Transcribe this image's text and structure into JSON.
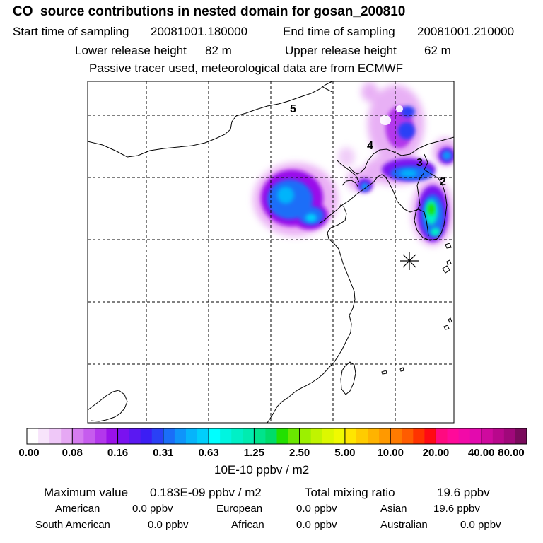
{
  "header": {
    "title": "CO  source contributions in nested domain for gosan_200810",
    "start_label": "Start time of sampling",
    "start_value": "20081001.180000",
    "end_label": "End time of sampling",
    "end_value": "20081001.210000",
    "lower_label": "Lower release height",
    "lower_value": "82 m",
    "upper_label": "Upper release height",
    "upper_value": "62 m",
    "note": "Passive tracer used, meteorological data are from ECMWF"
  },
  "map": {
    "trajectory_labels": [
      "5",
      "4",
      "3",
      "2"
    ],
    "receptor_marker": "asterisk"
  },
  "colorbar": {
    "ticks": [
      "0.00",
      "0.08",
      "0.16",
      "0.31",
      "0.63",
      "1.25",
      "2.50",
      "5.00",
      "10.00",
      "20.00",
      "40.00",
      "80.00"
    ],
    "colors": [
      "#ffffff",
      "#f7e4fb",
      "#efc8f8",
      "#e6a8f4",
      "#d57cf0",
      "#c65cee",
      "#b337ec",
      "#9a11ea",
      "#7a12f0",
      "#5b18f2",
      "#3c1ef4",
      "#2a40f6",
      "#1a6ef8",
      "#0f94fa",
      "#06b4fb",
      "#00cffc",
      "#00ffff",
      "#00f5e0",
      "#00f0c6",
      "#00ecb0",
      "#00e48c",
      "#00dc6a",
      "#22e000",
      "#6ae800",
      "#9cf000",
      "#c0f400",
      "#dcf800",
      "#f0fa00",
      "#ffe600",
      "#ffcc00",
      "#ffb300",
      "#ff9900",
      "#ff7b00",
      "#ff5c00",
      "#ff3300",
      "#ff0a14",
      "#ff0a80",
      "#ff0a9a",
      "#f20aa8",
      "#e30aae",
      "#cf0a9e",
      "#b8088c",
      "#a0087a",
      "#7a0a5c"
    ],
    "unit": "10E-10 ppbv / m2"
  },
  "summary": {
    "max_label": "Maximum value",
    "max_value": "0.183E-09 ppbv / m2",
    "total_label": "Total mixing ratio",
    "total_value": "19.6 ppbv",
    "regions": [
      {
        "name": "American",
        "value": "0.0 ppbv"
      },
      {
        "name": "European",
        "value": "0.0 ppbv"
      },
      {
        "name": "Asian",
        "value": "19.6 ppbv"
      },
      {
        "name": "South American",
        "value": "0.0 ppbv"
      },
      {
        "name": "African",
        "value": "0.0 ppbv"
      },
      {
        "name": "Australian",
        "value": "0.0 ppbv"
      }
    ]
  }
}
